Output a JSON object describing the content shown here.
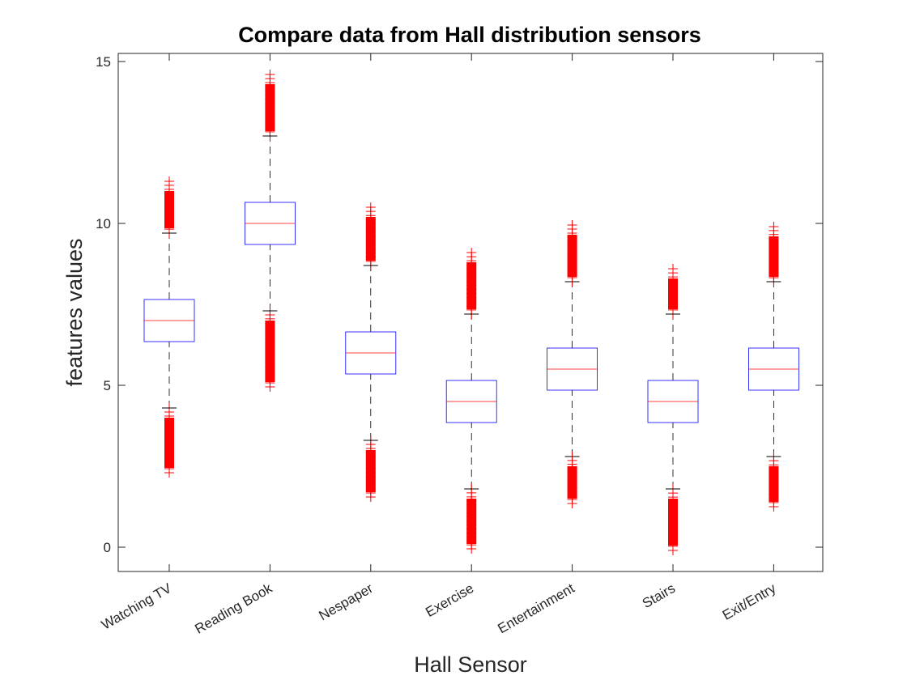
{
  "chart_data": {
    "type": "boxplot",
    "title": "Compare data from Hall distribution sensors",
    "xlabel": "Hall Sensor",
    "ylabel": "features values",
    "ylim": [
      -0.75,
      15.25
    ],
    "yticks": [
      "0",
      "5",
      "10",
      "15"
    ],
    "grid": false,
    "colors": {
      "box": "#0000ff",
      "median": "#ff0000",
      "whisker": "#000000",
      "outlier": "#ff0000",
      "axis": "#262626"
    },
    "categories": [
      "Watching TV",
      "Reading Book",
      "Nespaper",
      "Exercise",
      "Entertainment",
      "Stairs",
      "Exit/Entry"
    ],
    "boxes": [
      {
        "category": "Watching TV",
        "lower_whisker": 4.3,
        "q1": 6.35,
        "median": 7.0,
        "q3": 7.65,
        "upper_whisker": 9.7,
        "outliers_low": [
          2.3,
          4.3
        ],
        "outliers_high": [
          9.7,
          11.3
        ]
      },
      {
        "category": "Reading Book",
        "lower_whisker": 7.3,
        "q1": 9.35,
        "median": 10.0,
        "q3": 10.65,
        "upper_whisker": 12.7,
        "outliers_low": [
          4.95,
          7.3
        ],
        "outliers_high": [
          12.7,
          14.6
        ]
      },
      {
        "category": "Nespaper",
        "lower_whisker": 3.3,
        "q1": 5.35,
        "median": 6.0,
        "q3": 6.65,
        "upper_whisker": 8.7,
        "outliers_low": [
          1.55,
          3.3
        ],
        "outliers_high": [
          8.7,
          10.5
        ]
      },
      {
        "category": "Exercise",
        "lower_whisker": 1.8,
        "q1": 3.85,
        "median": 4.5,
        "q3": 5.15,
        "upper_whisker": 7.2,
        "outliers_low": [
          -0.05,
          1.8
        ],
        "outliers_high": [
          7.2,
          9.1
        ]
      },
      {
        "category": "Entertainment",
        "lower_whisker": 2.8,
        "q1": 4.85,
        "median": 5.5,
        "q3": 6.15,
        "upper_whisker": 8.2,
        "outliers_low": [
          1.35,
          2.8
        ],
        "outliers_high": [
          8.2,
          9.95
        ]
      },
      {
        "category": "Stairs",
        "lower_whisker": 1.8,
        "q1": 3.85,
        "median": 4.5,
        "q3": 5.15,
        "upper_whisker": 7.2,
        "outliers_low": [
          -0.1,
          1.8
        ],
        "outliers_high": [
          7.2,
          8.6
        ]
      },
      {
        "category": "Exit/Entry",
        "lower_whisker": 2.8,
        "q1": 4.85,
        "median": 5.5,
        "q3": 6.15,
        "upper_whisker": 8.2,
        "outliers_low": [
          1.25,
          2.8
        ],
        "outliers_high": [
          8.2,
          9.9
        ]
      }
    ]
  }
}
